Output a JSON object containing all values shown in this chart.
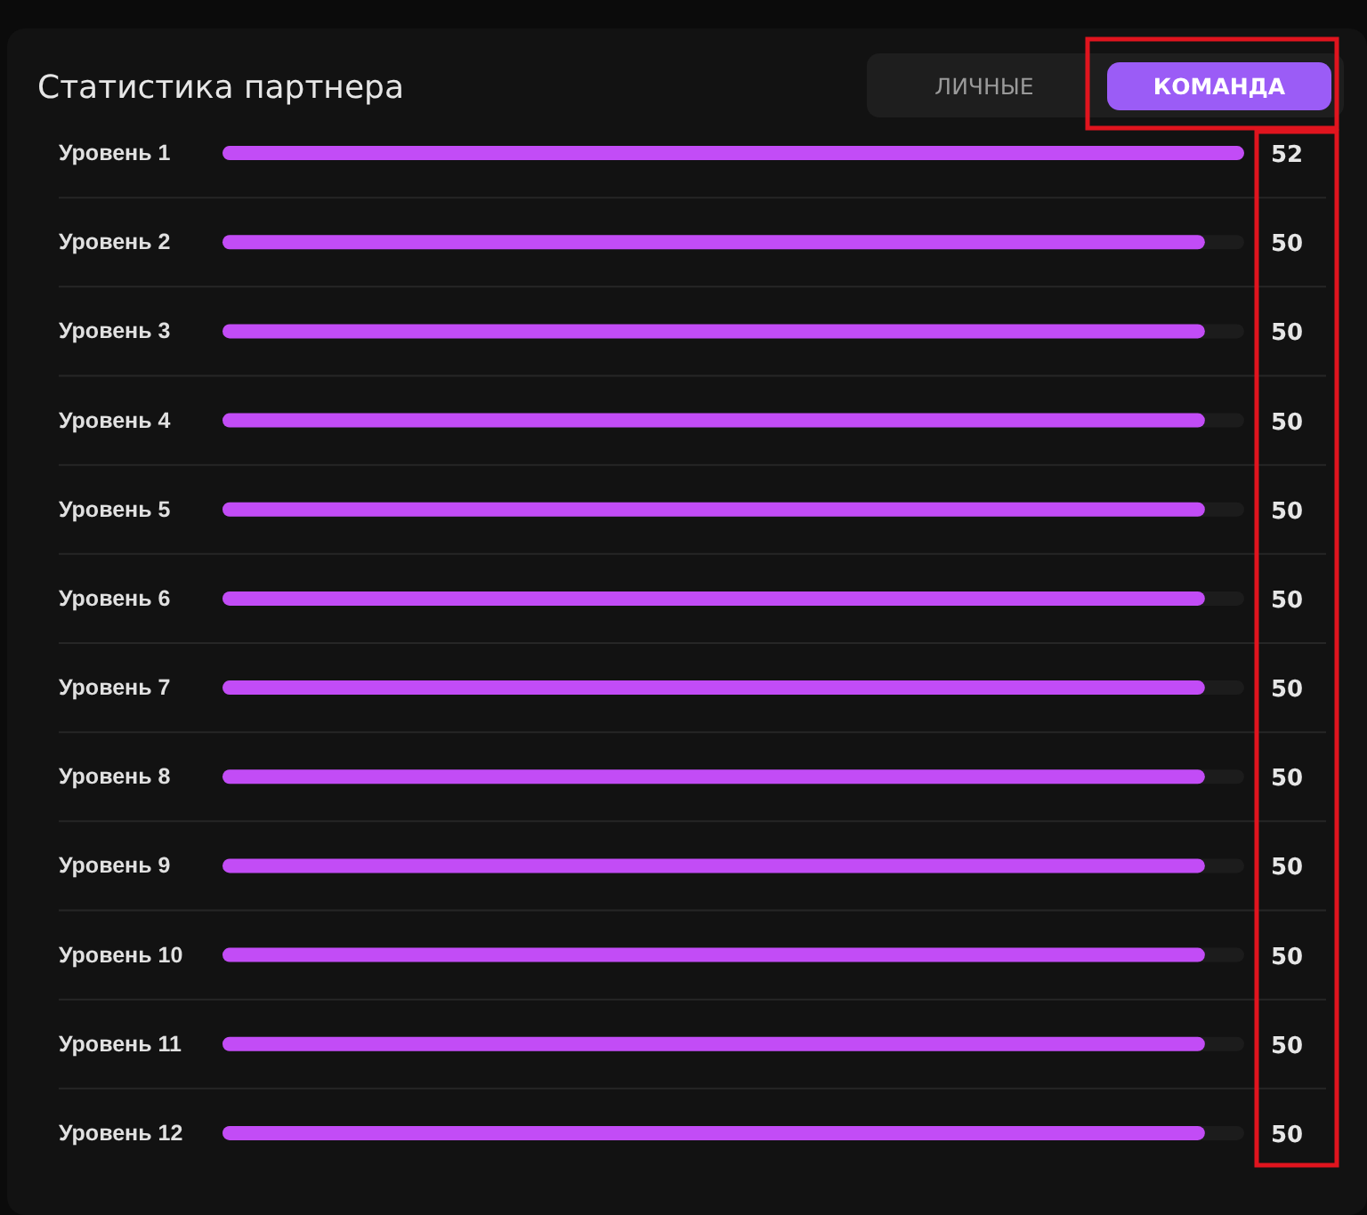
{
  "chart_data": {
    "type": "bar",
    "orientation": "horizontal",
    "title": "Статистика партнера",
    "categories": [
      "Уровень 1",
      "Уровень 2",
      "Уровень 3",
      "Уровень 4",
      "Уровень 5",
      "Уровень 6",
      "Уровень 7",
      "Уровень 8",
      "Уровень 9",
      "Уровень 10",
      "Уровень 11",
      "Уровень 12"
    ],
    "values": [
      52,
      50,
      50,
      50,
      50,
      50,
      50,
      50,
      50,
      50,
      50,
      50
    ],
    "color": "#c24cf6",
    "data_labels": true,
    "grid": "y",
    "annotations": [
      "ЛИЧНЫЕ",
      "КОМАНДА"
    ]
  }
}
